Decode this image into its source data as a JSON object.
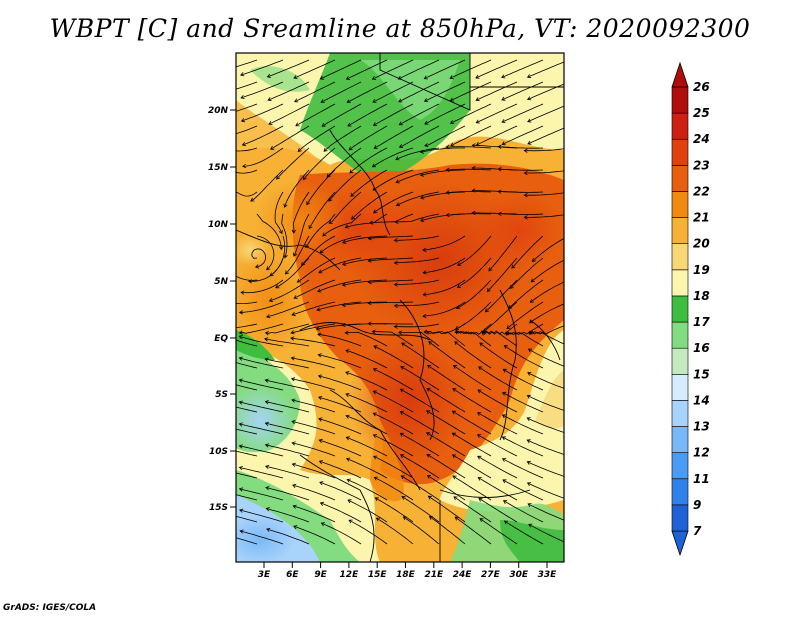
{
  "title": "WBPT [C] and Sreamline at 850hPa, VT: 2020092300",
  "footer": "GrADS: IGES/COLA",
  "map": {
    "lat_ticks": [
      "20N",
      "15N",
      "10N",
      "5N",
      "EQ",
      "5S",
      "10S",
      "15S"
    ],
    "lon_ticks": [
      "3E",
      "6E",
      "9E",
      "12E",
      "15E",
      "18E",
      "21E",
      "24E",
      "27E",
      "30E",
      "33E"
    ]
  },
  "colorbar": {
    "labels": [
      "7",
      "9",
      "11",
      "12",
      "13",
      "14",
      "15",
      "16",
      "17",
      "18",
      "19",
      "20",
      "21",
      "22",
      "23",
      "24",
      "25",
      "26"
    ],
    "colors": [
      "#1f62d6",
      "#2f82ea",
      "#4a9cf2",
      "#79b8f7",
      "#a8d3fb",
      "#d7edfd",
      "#c4ebc0",
      "#84dc80",
      "#3fbd3f",
      "#fbf5ae",
      "#f8d777",
      "#f7b135",
      "#f18a10",
      "#e8600f",
      "#e0420f",
      "#cc2112",
      "#b00d0d"
    ]
  }
}
